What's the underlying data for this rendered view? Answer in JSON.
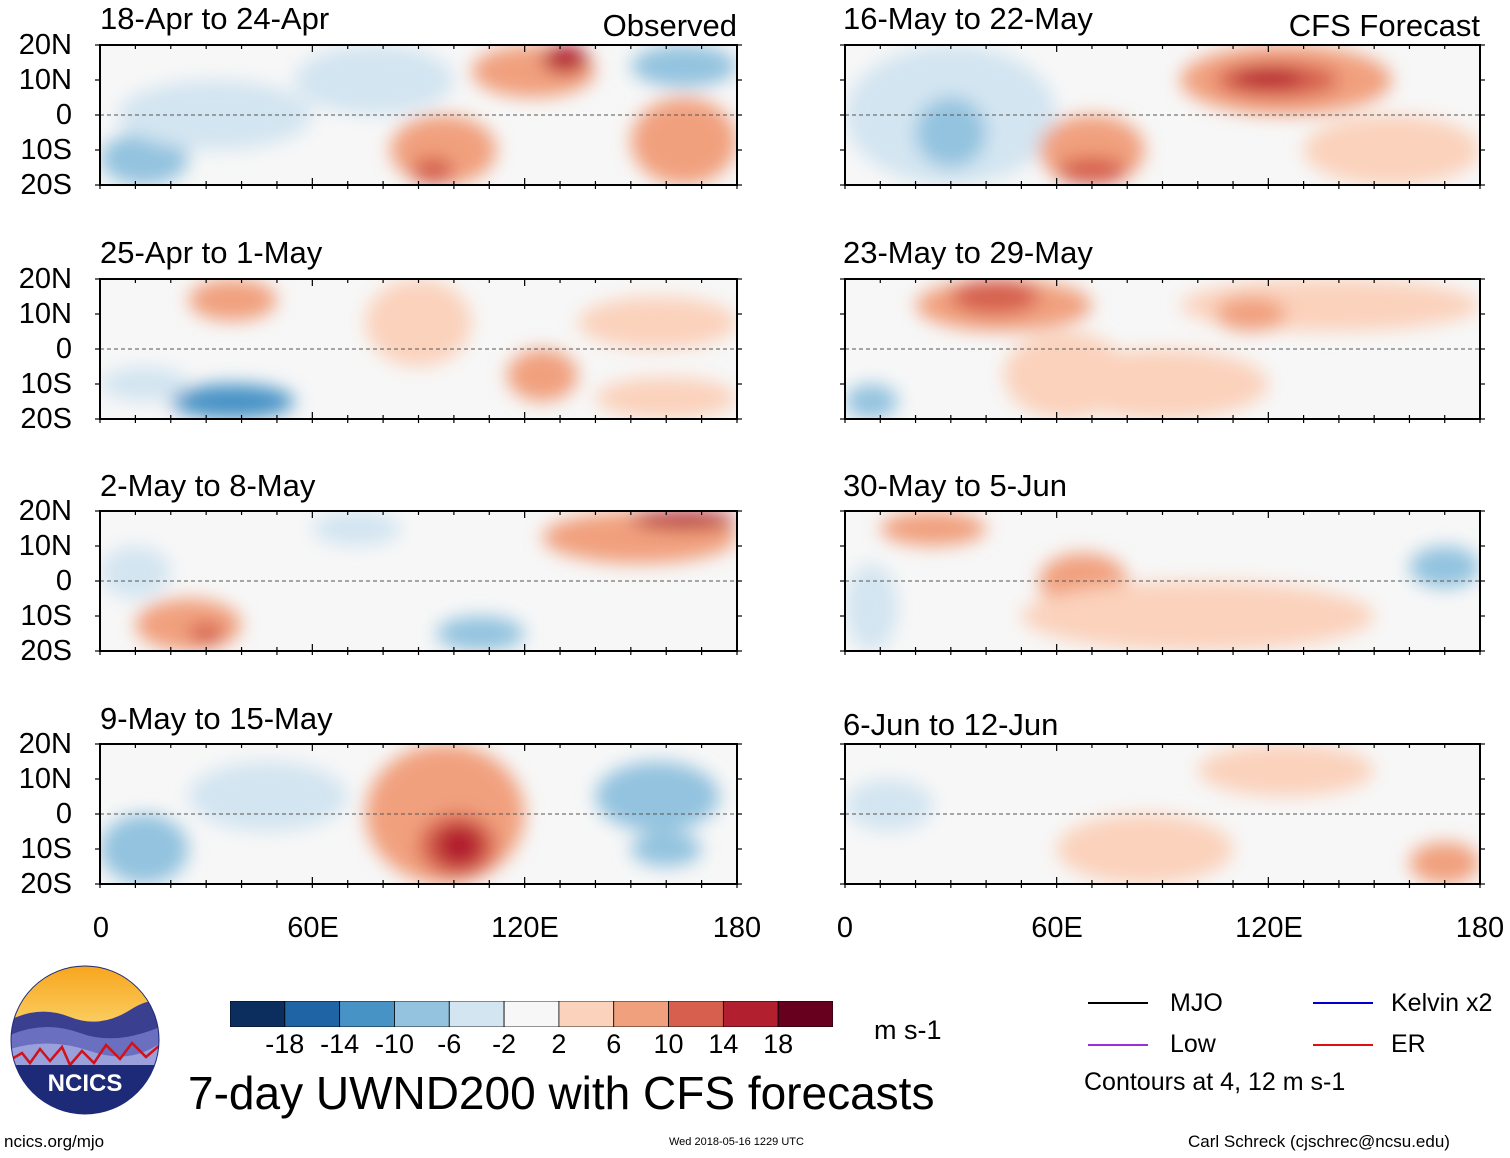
{
  "chart_data": {
    "type": "heatmap",
    "title": "7-day UWND200 with CFS forecasts",
    "variable": "UWND200",
    "units": "m s-1",
    "x_ticks": [
      "0",
      "60E",
      "120E",
      "180"
    ],
    "y_ticks": [
      "20N",
      "10N",
      "0",
      "10S",
      "20S"
    ],
    "xlim": [
      0,
      180
    ],
    "ylim": [
      -20,
      20
    ],
    "colorbar_levels": [
      "-18",
      "-14",
      "-10",
      "-6",
      "-2",
      "2",
      "6",
      "10",
      "14",
      "18"
    ],
    "colorbar_colors": [
      "#0b2e5e",
      "#1f65a6",
      "#4793c6",
      "#93c3df",
      "#d3e5f1",
      "#f7f7f7",
      "#fbd2bc",
      "#f1a07e",
      "#d6604d",
      "#b21f2e",
      "#67001f"
    ],
    "contour_note": "Contours at 4, 12 m s-1",
    "legend": [
      {
        "label": "MJO",
        "color": "#000000"
      },
      {
        "label": "Kelvin x2",
        "color": "#0000cc"
      },
      {
        "label": "Low",
        "color": "#9b30d9"
      },
      {
        "label": "ER",
        "color": "#dd1111"
      }
    ],
    "panels": [
      {
        "id": "p1",
        "title": "18-Apr to 24-Apr",
        "header": "Observed",
        "features": [
          {
            "x0": 0,
            "x1": 25,
            "y0": -20,
            "y1": -5,
            "level": 3
          },
          {
            "x0": 5,
            "x1": 60,
            "y0": -10,
            "y1": 10,
            "level": 4
          },
          {
            "x0": 55,
            "x1": 100,
            "y0": 0,
            "y1": 20,
            "level": 4
          },
          {
            "x0": 82,
            "x1": 112,
            "y0": -20,
            "y1": 0,
            "level": 7
          },
          {
            "x0": 88,
            "x1": 100,
            "y0": -20,
            "y1": -12,
            "level": 8
          },
          {
            "x0": 105,
            "x1": 140,
            "y0": 5,
            "y1": 20,
            "level": 7
          },
          {
            "x0": 125,
            "x1": 138,
            "y0": 12,
            "y1": 20,
            "level": 9
          },
          {
            "x0": 150,
            "x1": 180,
            "y0": -20,
            "y1": 5,
            "level": 7
          },
          {
            "x0": 150,
            "x1": 180,
            "y0": 8,
            "y1": 20,
            "level": 3
          }
        ]
      },
      {
        "id": "p2",
        "title": "25-Apr to 1-May",
        "header": "",
        "features": [
          {
            "x0": 25,
            "x1": 50,
            "y0": 8,
            "y1": 20,
            "level": 7
          },
          {
            "x0": 20,
            "x1": 55,
            "y0": -20,
            "y1": -10,
            "level": 2
          },
          {
            "x0": 0,
            "x1": 25,
            "y0": -15,
            "y1": -5,
            "level": 4
          },
          {
            "x0": 75,
            "x1": 105,
            "y0": -5,
            "y1": 20,
            "level": 6
          },
          {
            "x0": 115,
            "x1": 135,
            "y0": -15,
            "y1": 0,
            "level": 7
          },
          {
            "x0": 135,
            "x1": 180,
            "y0": 0,
            "y1": 15,
            "level": 6
          },
          {
            "x0": 140,
            "x1": 180,
            "y0": -20,
            "y1": -8,
            "level": 6
          }
        ]
      },
      {
        "id": "p3",
        "title": "2-May to 8-May",
        "header": "",
        "features": [
          {
            "x0": 10,
            "x1": 40,
            "y0": -20,
            "y1": -5,
            "level": 7
          },
          {
            "x0": 25,
            "x1": 35,
            "y0": -18,
            "y1": -12,
            "level": 8
          },
          {
            "x0": 95,
            "x1": 120,
            "y0": -20,
            "y1": -10,
            "level": 3
          },
          {
            "x0": 125,
            "x1": 180,
            "y0": 5,
            "y1": 20,
            "level": 7
          },
          {
            "x0": 150,
            "x1": 180,
            "y0": 15,
            "y1": 20,
            "level": 9
          },
          {
            "x0": 0,
            "x1": 20,
            "y0": -5,
            "y1": 10,
            "level": 4
          },
          {
            "x0": 60,
            "x1": 85,
            "y0": 10,
            "y1": 20,
            "level": 4
          }
        ]
      },
      {
        "id": "p4",
        "title": "9-May to 15-May",
        "header": "",
        "features": [
          {
            "x0": 0,
            "x1": 25,
            "y0": -20,
            "y1": 0,
            "level": 3
          },
          {
            "x0": 25,
            "x1": 70,
            "y0": -5,
            "y1": 15,
            "level": 4
          },
          {
            "x0": 75,
            "x1": 120,
            "y0": -20,
            "y1": 20,
            "level": 7
          },
          {
            "x0": 90,
            "x1": 112,
            "y0": -18,
            "y1": 0,
            "level": 8
          },
          {
            "x0": 95,
            "x1": 108,
            "y0": -15,
            "y1": -3,
            "level": 9
          },
          {
            "x0": 140,
            "x1": 175,
            "y0": -5,
            "y1": 15,
            "level": 3
          },
          {
            "x0": 150,
            "x1": 170,
            "y0": -15,
            "y1": -5,
            "level": 3
          }
        ]
      },
      {
        "id": "p5",
        "title": "16-May to 22-May",
        "header": "CFS Forecast",
        "features": [
          {
            "x0": 0,
            "x1": 60,
            "y0": -20,
            "y1": 20,
            "level": 4
          },
          {
            "x0": 20,
            "x1": 40,
            "y0": -15,
            "y1": 5,
            "level": 3
          },
          {
            "x0": 55,
            "x1": 85,
            "y0": -20,
            "y1": 0,
            "level": 7
          },
          {
            "x0": 60,
            "x1": 80,
            "y0": -20,
            "y1": -12,
            "level": 8
          },
          {
            "x0": 95,
            "x1": 155,
            "y0": 0,
            "y1": 20,
            "level": 7
          },
          {
            "x0": 105,
            "x1": 140,
            "y0": 5,
            "y1": 15,
            "level": 8
          },
          {
            "x0": 110,
            "x1": 130,
            "y0": 8,
            "y1": 13,
            "level": 9
          },
          {
            "x0": 130,
            "x1": 180,
            "y0": -20,
            "y1": 0,
            "level": 6
          }
        ]
      },
      {
        "id": "p6",
        "title": "23-May to 29-May",
        "header": "",
        "features": [
          {
            "x0": 20,
            "x1": 70,
            "y0": 5,
            "y1": 20,
            "level": 7
          },
          {
            "x0": 30,
            "x1": 55,
            "y0": 10,
            "y1": 20,
            "level": 8
          },
          {
            "x0": 45,
            "x1": 80,
            "y0": -20,
            "y1": 5,
            "level": 6
          },
          {
            "x0": 0,
            "x1": 15,
            "y0": -20,
            "y1": -10,
            "level": 3
          },
          {
            "x0": 95,
            "x1": 180,
            "y0": 5,
            "y1": 20,
            "level": 6
          },
          {
            "x0": 105,
            "x1": 125,
            "y0": 5,
            "y1": 15,
            "level": 7
          },
          {
            "x0": 60,
            "x1": 120,
            "y0": -20,
            "y1": 0,
            "level": 6
          }
        ]
      },
      {
        "id": "p7",
        "title": "30-May to 5-Jun",
        "header": "",
        "features": [
          {
            "x0": 10,
            "x1": 40,
            "y0": 10,
            "y1": 20,
            "level": 7
          },
          {
            "x0": 55,
            "x1": 80,
            "y0": -8,
            "y1": 8,
            "level": 7
          },
          {
            "x0": 50,
            "x1": 150,
            "y0": -20,
            "y1": 0,
            "level": 6
          },
          {
            "x0": 160,
            "x1": 180,
            "y0": -2,
            "y1": 10,
            "level": 3
          },
          {
            "x0": 0,
            "x1": 15,
            "y0": -20,
            "y1": 5,
            "level": 4
          }
        ]
      },
      {
        "id": "p8",
        "title": "6-Jun to 12-Jun",
        "header": "",
        "features": [
          {
            "x0": 60,
            "x1": 110,
            "y0": -20,
            "y1": 0,
            "level": 6
          },
          {
            "x0": 100,
            "x1": 150,
            "y0": 5,
            "y1": 20,
            "level": 6
          },
          {
            "x0": 160,
            "x1": 180,
            "y0": -20,
            "y1": -8,
            "level": 7
          },
          {
            "x0": 0,
            "x1": 25,
            "y0": -5,
            "y1": 10,
            "level": 4
          }
        ]
      }
    ]
  },
  "logo": {
    "text": "NCICS"
  },
  "footer": {
    "url": "ncics.org/mjo",
    "timestamp": "Wed 2018-05-16 1229 UTC",
    "author": "Carl Schreck (cjschrec@ncsu.edu)"
  }
}
